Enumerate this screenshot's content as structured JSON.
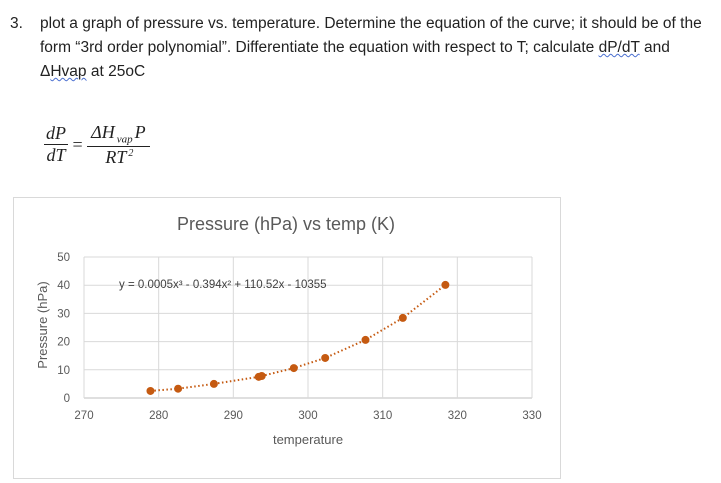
{
  "question": {
    "number": "3.",
    "text_before_1": "plot a graph of pressure vs. temperature. Determine the equation of the curve; it should be of the form “3rd order polynomial”. Differentiate the equation with respect to T; calculate ",
    "dpdt": "dP/dT",
    "text_before_2": " and Δ",
    "hvap": "Hvap",
    "text_after": " at 25oC"
  },
  "equation": {
    "lhs_num": "dP",
    "lhs_den": "dT",
    "equals": "=",
    "rhs_num": "ΔH",
    "rhs_sub": "vap",
    "rhs_num2": "P",
    "rhs_den": "RT",
    "rhs_den_exp": "2"
  },
  "chart_data": {
    "type": "scatter",
    "title": "Pressure (hPa) vs temp (K)",
    "xlabel": "temperature",
    "ylabel": "Pressure (hPa)",
    "xlim": [
      270,
      330
    ],
    "ylim": [
      0,
      50
    ],
    "xticks": [
      270,
      280,
      290,
      300,
      310,
      320,
      330
    ],
    "yticks": [
      0,
      10,
      20,
      30,
      40,
      50
    ],
    "grid": true,
    "marker_color": "#c55a11",
    "trendline": {
      "type": "polynomial order 3",
      "style": "dotted",
      "label": "y = 0.0005x³ - 0.394x² + 110.52x - 10355"
    },
    "x": [
      278.9,
      282.6,
      287.4,
      293.4,
      293.8,
      298.1,
      302.3,
      307.7,
      312.7,
      318.4
    ],
    "y": [
      2.5,
      3.3,
      5.0,
      7.5,
      7.8,
      10.6,
      14.2,
      20.6,
      28.4,
      40.1
    ]
  }
}
